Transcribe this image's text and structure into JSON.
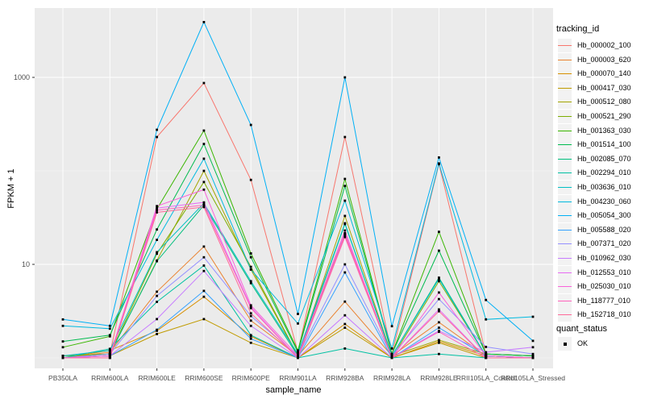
{
  "chart_data": {
    "type": "line",
    "title": "",
    "xlabel": "sample_name",
    "ylabel": "FPKM + 1",
    "y_scale": "log10",
    "y_ticks": [
      10,
      1000
    ],
    "y_tick_labels": [
      "10",
      "1000"
    ],
    "y_minor_ticks": [
      1,
      100
    ],
    "ylim": [
      0.75,
      5500
    ],
    "grid": true,
    "legend_position": "right",
    "legend_title": "tracking_id",
    "panel_bg": "#EBEBEB",
    "grid_color": "#FFFFFF",
    "point_color": "#000000",
    "axis_text_color": "#4D4D4D",
    "categories": [
      "PB350LA",
      "RRIM600LA",
      "RRIM600LE",
      "RRIM600SE",
      "RRIM600PE",
      "RRIM901LA",
      "RRIM928BA",
      "RRIM928LA",
      "RRIM928LE",
      "RRII105LA_Control",
      "RRII105LA_Stressed"
    ],
    "series": [
      {
        "name": "Hb_000002_100",
        "color": "#F8766D",
        "values": [
          1.05,
          1.1,
          230,
          870,
          80,
          1.15,
          230,
          1.1,
          118,
          1.1,
          1.05
        ]
      },
      {
        "name": "Hb_000003_620",
        "color": "#EA8331",
        "values": [
          1.0,
          1.15,
          5.1,
          15.5,
          2.5,
          1.05,
          4.0,
          1.05,
          2.4,
          1.05,
          1.0
        ]
      },
      {
        "name": "Hb_000070_140",
        "color": "#D89000",
        "values": [
          1.0,
          1.2,
          1.95,
          4.5,
          1.7,
          1.0,
          2.3,
          1.0,
          1.5,
          1.05,
          1.0
        ]
      },
      {
        "name": "Hb_000417_030",
        "color": "#C09B00",
        "values": [
          1.0,
          1.05,
          1.8,
          2.6,
          1.45,
          1.0,
          2.1,
          1.0,
          1.45,
          1.0,
          1.0
        ]
      },
      {
        "name": "Hb_000512_080",
        "color": "#A3A500",
        "values": [
          1.0,
          1.1,
          11,
          100,
          8.8,
          1.05,
          33,
          1.05,
          1.55,
          1.1,
          1.05
        ]
      },
      {
        "name": "Hb_000521_290",
        "color": "#7CAE00",
        "values": [
          1.05,
          1.1,
          13,
          76,
          9.4,
          1.05,
          21.5,
          1.0,
          6.6,
          1.05,
          1.0
        ]
      },
      {
        "name": "Hb_001363_030",
        "color": "#39B600",
        "values": [
          1.3,
          1.7,
          39,
          270,
          13.1,
          1.2,
          82,
          1.1,
          22.3,
          1.1,
          1.05
        ]
      },
      {
        "name": "Hb_001514_100",
        "color": "#00BB4E",
        "values": [
          1.5,
          1.75,
          23.6,
          194,
          11.9,
          1.15,
          69,
          1.1,
          14,
          1.1,
          1.05
        ]
      },
      {
        "name": "Hb_002085_070",
        "color": "#00BF7D",
        "values": [
          1.0,
          1.1,
          10.8,
          43,
          6.3,
          1.05,
          27,
          1.05,
          7.2,
          1.05,
          1.0
        ]
      },
      {
        "name": "Hb_002294_010",
        "color": "#00C1A3",
        "values": [
          1.0,
          1.25,
          3.97,
          9.7,
          1.75,
          1.0,
          1.26,
          1.0,
          1.1,
          1.0,
          1.0
        ]
      },
      {
        "name": "Hb_003636_010",
        "color": "#00BFC4",
        "values": [
          1.05,
          1.2,
          13.5,
          45,
          6.6,
          1.1,
          27.5,
          1.05,
          7.0,
          1.05,
          1.0
        ]
      },
      {
        "name": "Hb_004230_060",
        "color": "#00BAE0",
        "values": [
          2.2,
          2.05,
          18.3,
          135,
          8.8,
          2.33,
          48,
          1.26,
          120,
          2.58,
          2.75
        ]
      },
      {
        "name": "Hb_005054_300",
        "color": "#00B0F6",
        "values": [
          2.58,
          2.2,
          275,
          3900,
          310,
          2.95,
          1000,
          2.18,
          139,
          4.16,
          1.52
        ]
      },
      {
        "name": "Hb_005588_020",
        "color": "#35A2FF",
        "values": [
          1.0,
          1.05,
          2.0,
          5.2,
          1.6,
          1.0,
          8.2,
          1.0,
          2.1,
          1.05,
          1.0
        ]
      },
      {
        "name": "Hb_007371_020",
        "color": "#9590FF",
        "values": [
          1.0,
          1.1,
          4.6,
          11.9,
          2.8,
          1.05,
          10,
          1.05,
          4.25,
          1.31,
          1.1
        ]
      },
      {
        "name": "Hb_010962_030",
        "color": "#C77CFF",
        "values": [
          1.0,
          1.05,
          2.6,
          8.5,
          2.2,
          1.0,
          2.85,
          1.0,
          1.95,
          1.15,
          1.3
        ]
      },
      {
        "name": "Hb_012553_010",
        "color": "#E76BF3",
        "values": [
          1.0,
          1.0,
          40,
          46,
          3.5,
          1.0,
          21.5,
          1.0,
          3.3,
          1.0,
          1.0
        ]
      },
      {
        "name": "Hb_025030_010",
        "color": "#FA62DB",
        "values": [
          1.0,
          1.05,
          42,
          63,
          3.65,
          1.05,
          23,
          1.0,
          5.0,
          1.05,
          1.0
        ]
      },
      {
        "name": "Hb_118777_010",
        "color": "#FF62BC",
        "values": [
          1.0,
          1.0,
          38,
          43,
          3.4,
          1.0,
          19.6,
          1.0,
          1.9,
          1.0,
          1.0
        ]
      },
      {
        "name": "Hb_152718_010",
        "color": "#FF6A98",
        "values": [
          1.0,
          1.0,
          36,
          41,
          3.0,
          1.0,
          20.5,
          1.0,
          3.15,
          1.0,
          1.0
        ]
      }
    ],
    "quant_legend": {
      "title": "quant_status",
      "items": [
        {
          "label": "OK",
          "marker": "black-square"
        }
      ]
    }
  }
}
